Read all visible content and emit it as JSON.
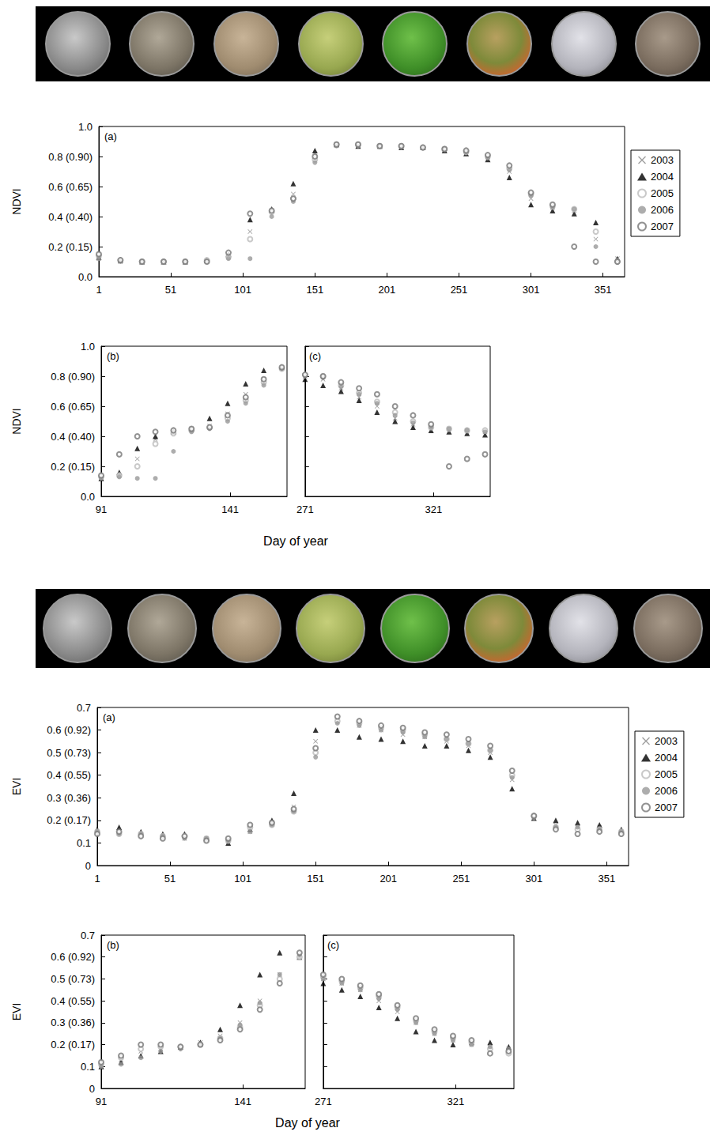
{
  "chart_data": [
    {
      "type": "scatter",
      "panel": "(a)",
      "ylabel": "NDVI",
      "legend": "right",
      "grid": false,
      "xlim": [
        1,
        366
      ],
      "xticks": [
        1,
        51,
        101,
        151,
        201,
        251,
        301,
        351
      ],
      "ylim": [
        0,
        1
      ],
      "yticks": [
        {
          "value": 0,
          "label": "0.0"
        },
        {
          "value": 0.2,
          "label": "0.2 (0.15)"
        },
        {
          "value": 0.4,
          "label": "0.4 (0.40)"
        },
        {
          "value": 0.6,
          "label": "0.6 (0.65)"
        },
        {
          "value": 0.8,
          "label": "0.8 (0.90)"
        },
        {
          "value": 1,
          "label": "1.0"
        }
      ],
      "x": [
        1,
        16,
        31,
        46,
        61,
        76,
        91,
        106,
        121,
        136,
        151,
        166,
        181,
        196,
        211,
        226,
        241,
        256,
        271,
        286,
        301,
        316,
        331,
        346,
        361
      ],
      "series": [
        {
          "name": "2003",
          "color": "#888888",
          "marker": "x",
          "values": [
            0.12,
            0.1,
            0.1,
            0.1,
            0.1,
            0.1,
            0.14,
            0.3,
            0.44,
            0.55,
            0.8,
            0.88,
            0.87,
            0.87,
            0.87,
            0.86,
            0.85,
            0.83,
            0.8,
            0.7,
            0.52,
            0.46,
            0.44,
            0.25,
            0.12
          ]
        },
        {
          "name": "2004",
          "color": "#000000",
          "marker": "triangle",
          "values": [
            0.13,
            0.11,
            0.1,
            0.1,
            0.1,
            0.11,
            0.15,
            0.38,
            0.45,
            0.62,
            0.84,
            0.88,
            0.87,
            0.87,
            0.86,
            0.86,
            0.84,
            0.82,
            0.78,
            0.66,
            0.48,
            0.44,
            0.42,
            0.36,
            0.12
          ]
        },
        {
          "name": "2005",
          "color": "#bbbbbb",
          "marker": "open_circle",
          "values": [
            0.14,
            0.11,
            0.1,
            0.1,
            0.1,
            0.11,
            0.13,
            0.25,
            0.43,
            0.52,
            0.78,
            0.88,
            0.88,
            0.87,
            0.87,
            0.86,
            0.85,
            0.83,
            0.8,
            0.72,
            0.55,
            0.47,
            0.45,
            0.3,
            0.1
          ]
        },
        {
          "name": "2006",
          "color": "#999999",
          "marker": "circle",
          "values": [
            0.12,
            0.1,
            0.1,
            0.1,
            0.1,
            0.1,
            0.12,
            0.12,
            0.4,
            0.5,
            0.76,
            0.87,
            0.87,
            0.87,
            0.86,
            0.86,
            0.85,
            0.83,
            0.79,
            0.71,
            0.54,
            0.46,
            0.45,
            0.2,
            0.11
          ]
        },
        {
          "name": "2007",
          "color": "#777777",
          "marker": "open_circle",
          "values": [
            0.15,
            0.11,
            0.1,
            0.1,
            0.1,
            0.1,
            0.16,
            0.42,
            0.44,
            0.52,
            0.8,
            0.88,
            0.88,
            0.87,
            0.87,
            0.86,
            0.85,
            0.84,
            0.81,
            0.74,
            0.56,
            0.48,
            0.2,
            0.1,
            0.1
          ]
        }
      ]
    },
    {
      "type": "scatter",
      "panel": "(b)",
      "ylabel": "NDVI",
      "xlabel": "Day of year",
      "grid": false,
      "xlim": [
        91,
        163
      ],
      "xticks": [
        91,
        141
      ],
      "ylim": [
        0,
        1
      ],
      "yticks": [
        {
          "value": 0,
          "label": "0.0"
        },
        {
          "value": 0.2,
          "label": "0.2 (0.15)"
        },
        {
          "value": 0.4,
          "label": "0.4 (0.40)"
        },
        {
          "value": 0.6,
          "label": "0.6 (0.65)"
        },
        {
          "value": 0.8,
          "label": "0.8 (0.90)"
        },
        {
          "value": 1,
          "label": "1.0"
        }
      ],
      "x": [
        91,
        98,
        105,
        112,
        119,
        126,
        133,
        140,
        147,
        154,
        161
      ],
      "series": [
        {
          "name": "2003",
          "color": "#888888",
          "marker": "x",
          "values": [
            0.12,
            0.14,
            0.25,
            0.38,
            0.43,
            0.45,
            0.47,
            0.55,
            0.68,
            0.78,
            0.86
          ]
        },
        {
          "name": "2004",
          "color": "#000000",
          "marker": "triangle",
          "values": [
            0.12,
            0.16,
            0.32,
            0.4,
            0.43,
            0.45,
            0.52,
            0.62,
            0.75,
            0.84,
            0.86
          ]
        },
        {
          "name": "2005",
          "color": "#bbbbbb",
          "marker": "open_circle",
          "values": [
            0.13,
            0.14,
            0.2,
            0.35,
            0.42,
            0.44,
            0.46,
            0.52,
            0.64,
            0.76,
            0.85
          ]
        },
        {
          "name": "2006",
          "color": "#999999",
          "marker": "circle",
          "values": [
            0.12,
            0.13,
            0.12,
            0.12,
            0.3,
            0.43,
            0.45,
            0.5,
            0.62,
            0.74,
            0.85
          ]
        },
        {
          "name": "2007",
          "color": "#777777",
          "marker": "open_circle",
          "values": [
            0.14,
            0.28,
            0.4,
            0.43,
            0.44,
            0.45,
            0.46,
            0.54,
            0.66,
            0.78,
            0.86
          ]
        }
      ]
    },
    {
      "type": "scatter",
      "panel": "(c)",
      "tick_labels": "x",
      "grid": false,
      "xlim": [
        271,
        343
      ],
      "xticks": [
        271,
        321
      ],
      "ylim": [
        0,
        1
      ],
      "yticks": [
        0,
        0.2,
        0.4,
        0.6,
        0.8,
        1
      ],
      "x": [
        271,
        278,
        285,
        292,
        299,
        306,
        313,
        320,
        327,
        334,
        341
      ],
      "series": [
        {
          "name": "2003",
          "color": "#888888",
          "marker": "x",
          "values": [
            0.8,
            0.78,
            0.72,
            0.66,
            0.6,
            0.52,
            0.48,
            0.46,
            0.45,
            0.44,
            0.43
          ]
        },
        {
          "name": "2004",
          "color": "#000000",
          "marker": "triangle",
          "values": [
            0.78,
            0.74,
            0.7,
            0.64,
            0.56,
            0.5,
            0.46,
            0.44,
            0.43,
            0.42,
            0.41
          ]
        },
        {
          "name": "2005",
          "color": "#bbbbbb",
          "marker": "open_circle",
          "values": [
            0.81,
            0.8,
            0.74,
            0.69,
            0.63,
            0.56,
            0.5,
            0.46,
            0.45,
            0.44,
            0.44
          ]
        },
        {
          "name": "2006",
          "color": "#999999",
          "marker": "circle",
          "values": [
            0.8,
            0.79,
            0.73,
            0.68,
            0.62,
            0.54,
            0.49,
            0.46,
            0.45,
            0.44,
            0.43
          ]
        },
        {
          "name": "2007",
          "color": "#777777",
          "marker": "open_circle",
          "values": [
            0.81,
            0.8,
            0.76,
            0.72,
            0.68,
            0.6,
            0.54,
            0.48,
            0.2,
            0.25,
            0.28
          ]
        }
      ]
    },
    {
      "type": "scatter",
      "panel": "(a)",
      "ylabel": "EVI",
      "legend": "right",
      "grid": false,
      "xlim": [
        1,
        366
      ],
      "xticks": [
        1,
        51,
        101,
        151,
        201,
        251,
        301,
        351
      ],
      "ylim": [
        0,
        0.7
      ],
      "yticks": [
        0,
        0.1,
        {
          "value": 0.2,
          "label": "0.2 (0.17)"
        },
        {
          "value": 0.3,
          "label": "0.3 (0.36)"
        },
        {
          "value": 0.4,
          "label": "0.4 (0.55)"
        },
        {
          "value": 0.5,
          "label": "0.5 (0.73)"
        },
        {
          "value": 0.6,
          "label": "0.6 (0.92)"
        },
        0.7
      ],
      "x": [
        1,
        16,
        31,
        46,
        61,
        76,
        91,
        106,
        121,
        136,
        151,
        166,
        181,
        196,
        211,
        226,
        241,
        256,
        271,
        286,
        301,
        316,
        331,
        346,
        361
      ],
      "series": [
        {
          "name": "2003",
          "color": "#888888",
          "marker": "x",
          "values": [
            0.15,
            0.15,
            0.14,
            0.13,
            0.12,
            0.12,
            0.11,
            0.15,
            0.19,
            0.26,
            0.55,
            0.64,
            0.62,
            0.6,
            0.58,
            0.57,
            0.55,
            0.53,
            0.5,
            0.38,
            0.22,
            0.18,
            0.17,
            0.17,
            0.15
          ]
        },
        {
          "name": "2004",
          "color": "#000000",
          "marker": "triangle",
          "values": [
            0.16,
            0.17,
            0.15,
            0.14,
            0.14,
            0.12,
            0.1,
            0.16,
            0.2,
            0.32,
            0.6,
            0.6,
            0.57,
            0.56,
            0.55,
            0.53,
            0.53,
            0.51,
            0.48,
            0.34,
            0.21,
            0.2,
            0.19,
            0.18,
            0.16
          ]
        },
        {
          "name": "2005",
          "color": "#bbbbbb",
          "marker": "open_circle",
          "values": [
            0.15,
            0.14,
            0.14,
            0.13,
            0.13,
            0.12,
            0.11,
            0.17,
            0.18,
            0.24,
            0.5,
            0.64,
            0.63,
            0.61,
            0.6,
            0.58,
            0.56,
            0.54,
            0.51,
            0.4,
            0.22,
            0.17,
            0.16,
            0.16,
            0.15
          ]
        },
        {
          "name": "2006",
          "color": "#999999",
          "marker": "circle",
          "values": [
            0.15,
            0.14,
            0.14,
            0.13,
            0.12,
            0.12,
            0.11,
            0.15,
            0.18,
            0.24,
            0.48,
            0.63,
            0.62,
            0.6,
            0.59,
            0.57,
            0.56,
            0.54,
            0.51,
            0.39,
            0.21,
            0.17,
            0.17,
            0.16,
            0.15
          ]
        },
        {
          "name": "2007",
          "color": "#777777",
          "marker": "open_circle",
          "values": [
            0.14,
            0.15,
            0.13,
            0.12,
            0.13,
            0.11,
            0.12,
            0.18,
            0.19,
            0.25,
            0.52,
            0.66,
            0.64,
            0.62,
            0.61,
            0.59,
            0.58,
            0.56,
            0.53,
            0.42,
            0.22,
            0.16,
            0.14,
            0.15,
            0.14
          ]
        }
      ]
    },
    {
      "type": "scatter",
      "panel": "(b)",
      "ylabel": "EVI",
      "xlabel": "Day of year",
      "grid": false,
      "xlim": [
        91,
        163
      ],
      "xticks": [
        91,
        141
      ],
      "ylim": [
        0,
        0.7
      ],
      "yticks": [
        0,
        0.1,
        {
          "value": 0.2,
          "label": "0.2 (0.17)"
        },
        {
          "value": 0.3,
          "label": "0.3 (0.36)"
        },
        {
          "value": 0.4,
          "label": "0.4 (0.55)"
        },
        {
          "value": 0.5,
          "label": "0.5 (0.73)"
        },
        {
          "value": 0.6,
          "label": "0.6 (0.92)"
        },
        0.7
      ],
      "x": [
        91,
        98,
        105,
        112,
        119,
        126,
        133,
        140,
        147,
        154,
        161
      ],
      "series": [
        {
          "name": "2003",
          "color": "#888888",
          "marker": "x",
          "values": [
            0.1,
            0.13,
            0.17,
            0.18,
            0.19,
            0.21,
            0.24,
            0.3,
            0.4,
            0.52,
            0.6
          ]
        },
        {
          "name": "2004",
          "color": "#000000",
          "marker": "triangle",
          "values": [
            0.1,
            0.12,
            0.15,
            0.17,
            0.19,
            0.21,
            0.27,
            0.38,
            0.52,
            0.62,
            0.6
          ]
        },
        {
          "name": "2005",
          "color": "#bbbbbb",
          "marker": "open_circle",
          "values": [
            0.11,
            0.14,
            0.18,
            0.19,
            0.19,
            0.2,
            0.23,
            0.28,
            0.38,
            0.5,
            0.6
          ]
        },
        {
          "name": "2006",
          "color": "#999999",
          "marker": "circle",
          "values": [
            0.1,
            0.11,
            0.14,
            0.17,
            0.18,
            0.2,
            0.23,
            0.29,
            0.39,
            0.52,
            0.61
          ]
        },
        {
          "name": "2007",
          "color": "#777777",
          "marker": "open_circle",
          "values": [
            0.12,
            0.15,
            0.2,
            0.2,
            0.19,
            0.2,
            0.22,
            0.27,
            0.36,
            0.48,
            0.62
          ]
        }
      ]
    },
    {
      "type": "scatter",
      "panel": "(c)",
      "tick_labels": "x",
      "grid": false,
      "xlim": [
        271,
        343
      ],
      "xticks": [
        271,
        321
      ],
      "ylim": [
        0,
        0.7
      ],
      "yticks": [
        0,
        0.1,
        0.2,
        0.3,
        0.4,
        0.5,
        0.6,
        0.7
      ],
      "x": [
        271,
        278,
        285,
        292,
        299,
        306,
        313,
        320,
        327,
        334,
        341
      ],
      "series": [
        {
          "name": "2003",
          "color": "#888888",
          "marker": "x",
          "values": [
            0.5,
            0.48,
            0.45,
            0.4,
            0.35,
            0.3,
            0.25,
            0.22,
            0.2,
            0.19,
            0.18
          ]
        },
        {
          "name": "2004",
          "color": "#000000",
          "marker": "triangle",
          "values": [
            0.48,
            0.45,
            0.42,
            0.37,
            0.32,
            0.26,
            0.22,
            0.2,
            0.21,
            0.21,
            0.19
          ]
        },
        {
          "name": "2005",
          "color": "#bbbbbb",
          "marker": "open_circle",
          "values": [
            0.51,
            0.49,
            0.46,
            0.42,
            0.37,
            0.31,
            0.26,
            0.23,
            0.21,
            0.18,
            0.16
          ]
        },
        {
          "name": "2006",
          "color": "#999999",
          "marker": "circle",
          "values": [
            0.5,
            0.48,
            0.45,
            0.41,
            0.36,
            0.3,
            0.25,
            0.22,
            0.2,
            0.19,
            0.18
          ]
        },
        {
          "name": "2007",
          "color": "#777777",
          "marker": "open_circle",
          "values": [
            0.52,
            0.5,
            0.47,
            0.43,
            0.38,
            0.32,
            0.27,
            0.24,
            0.22,
            0.16,
            0.17
          ]
        }
      ]
    }
  ]
}
